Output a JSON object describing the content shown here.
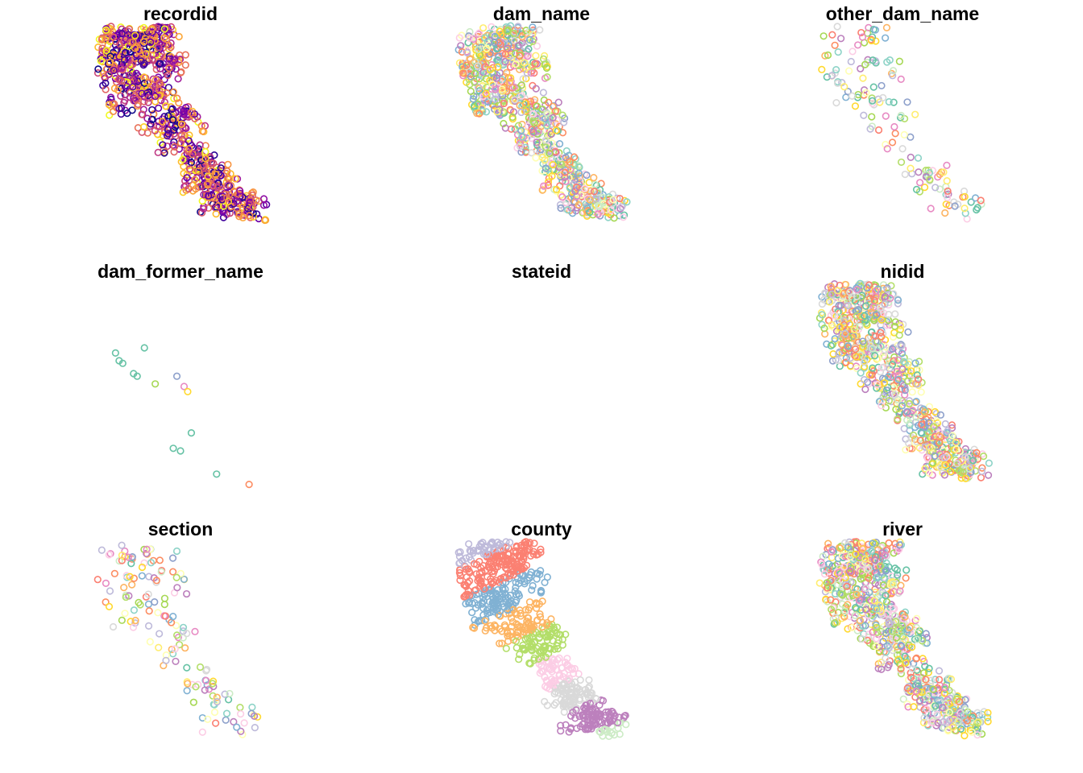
{
  "figure": {
    "panels": [
      {
        "title": "recordid",
        "palette": [
          "#0d0887",
          "#2a0593",
          "#41049d",
          "#5601a4",
          "#6a00a8",
          "#7e03a8",
          "#8f0da4",
          "#a11b9b",
          "#b12a90",
          "#bf3984",
          "#cc4778",
          "#d6556d",
          "#e16462",
          "#e97158",
          "#f1834b",
          "#f89540",
          "#fca636",
          "#feba2c",
          "#fcce25",
          "#f0f921"
        ],
        "density": "high"
      },
      {
        "title": "dam_name",
        "palette": [
          "#8dd3c7",
          "#ffffb3",
          "#bebada",
          "#fb8072",
          "#80b1d3",
          "#fdb462",
          "#b3de69",
          "#fccde5",
          "#d9d9d9",
          "#bc80bd",
          "#ccebc5",
          "#ffed6f",
          "#66c2a5",
          "#fc8d62",
          "#8da0cb",
          "#e78ac3",
          "#a6d854",
          "#ffd92f"
        ],
        "density": "high"
      },
      {
        "title": "other_dam_name",
        "palette": [
          "#8dd3c7",
          "#ffffb3",
          "#bebada",
          "#fb8072",
          "#80b1d3",
          "#fdb462",
          "#b3de69",
          "#fccde5",
          "#d9d9d9",
          "#bc80bd",
          "#ccebc5",
          "#ffed6f",
          "#66c2a5",
          "#fc8d62",
          "#8da0cb",
          "#e78ac3",
          "#a6d854",
          "#ffd92f"
        ],
        "density": "medium"
      },
      {
        "title": "dam_former_name",
        "palette": [
          "#66c2a5",
          "#fc8d62",
          "#8da0cb",
          "#e78ac3",
          "#a6d854",
          "#ffd92f"
        ],
        "density": "low"
      },
      {
        "title": "stateid",
        "palette": [],
        "density": "none"
      },
      {
        "title": "nidid",
        "palette": [
          "#8dd3c7",
          "#ffffb3",
          "#bebada",
          "#fb8072",
          "#80b1d3",
          "#fdb462",
          "#b3de69",
          "#fccde5",
          "#d9d9d9",
          "#bc80bd",
          "#ccebc5",
          "#ffed6f",
          "#66c2a5",
          "#fc8d62",
          "#8da0cb",
          "#e78ac3",
          "#a6d854",
          "#ffd92f"
        ],
        "density": "high"
      },
      {
        "title": "section",
        "palette": [
          "#8dd3c7",
          "#ffffb3",
          "#bebada",
          "#fb8072",
          "#80b1d3",
          "#fdb462",
          "#b3de69",
          "#fccde5",
          "#d9d9d9",
          "#bc80bd",
          "#ccebc5",
          "#ffed6f",
          "#66c2a5",
          "#fc8d62",
          "#8da0cb",
          "#e78ac3",
          "#a6d854",
          "#ffd92f"
        ],
        "density": "medium"
      },
      {
        "title": "county",
        "palette": [
          "#8dd3c7",
          "#ffffb3",
          "#bebada",
          "#fb8072",
          "#80b1d3",
          "#fdb462",
          "#b3de69",
          "#fccde5",
          "#d9d9d9",
          "#bc80bd",
          "#ccebc5",
          "#ffed6f"
        ],
        "density": "clustered"
      },
      {
        "title": "river",
        "palette": [
          "#8dd3c7",
          "#ffffb3",
          "#bebada",
          "#fb8072",
          "#80b1d3",
          "#fdb462",
          "#b3de69",
          "#fccde5",
          "#d9d9d9",
          "#bc80bd",
          "#ccebc5",
          "#ffed6f",
          "#66c2a5",
          "#fc8d62",
          "#8da0cb",
          "#e78ac3",
          "#a6d854",
          "#ffd92f"
        ],
        "density": "high"
      }
    ]
  }
}
